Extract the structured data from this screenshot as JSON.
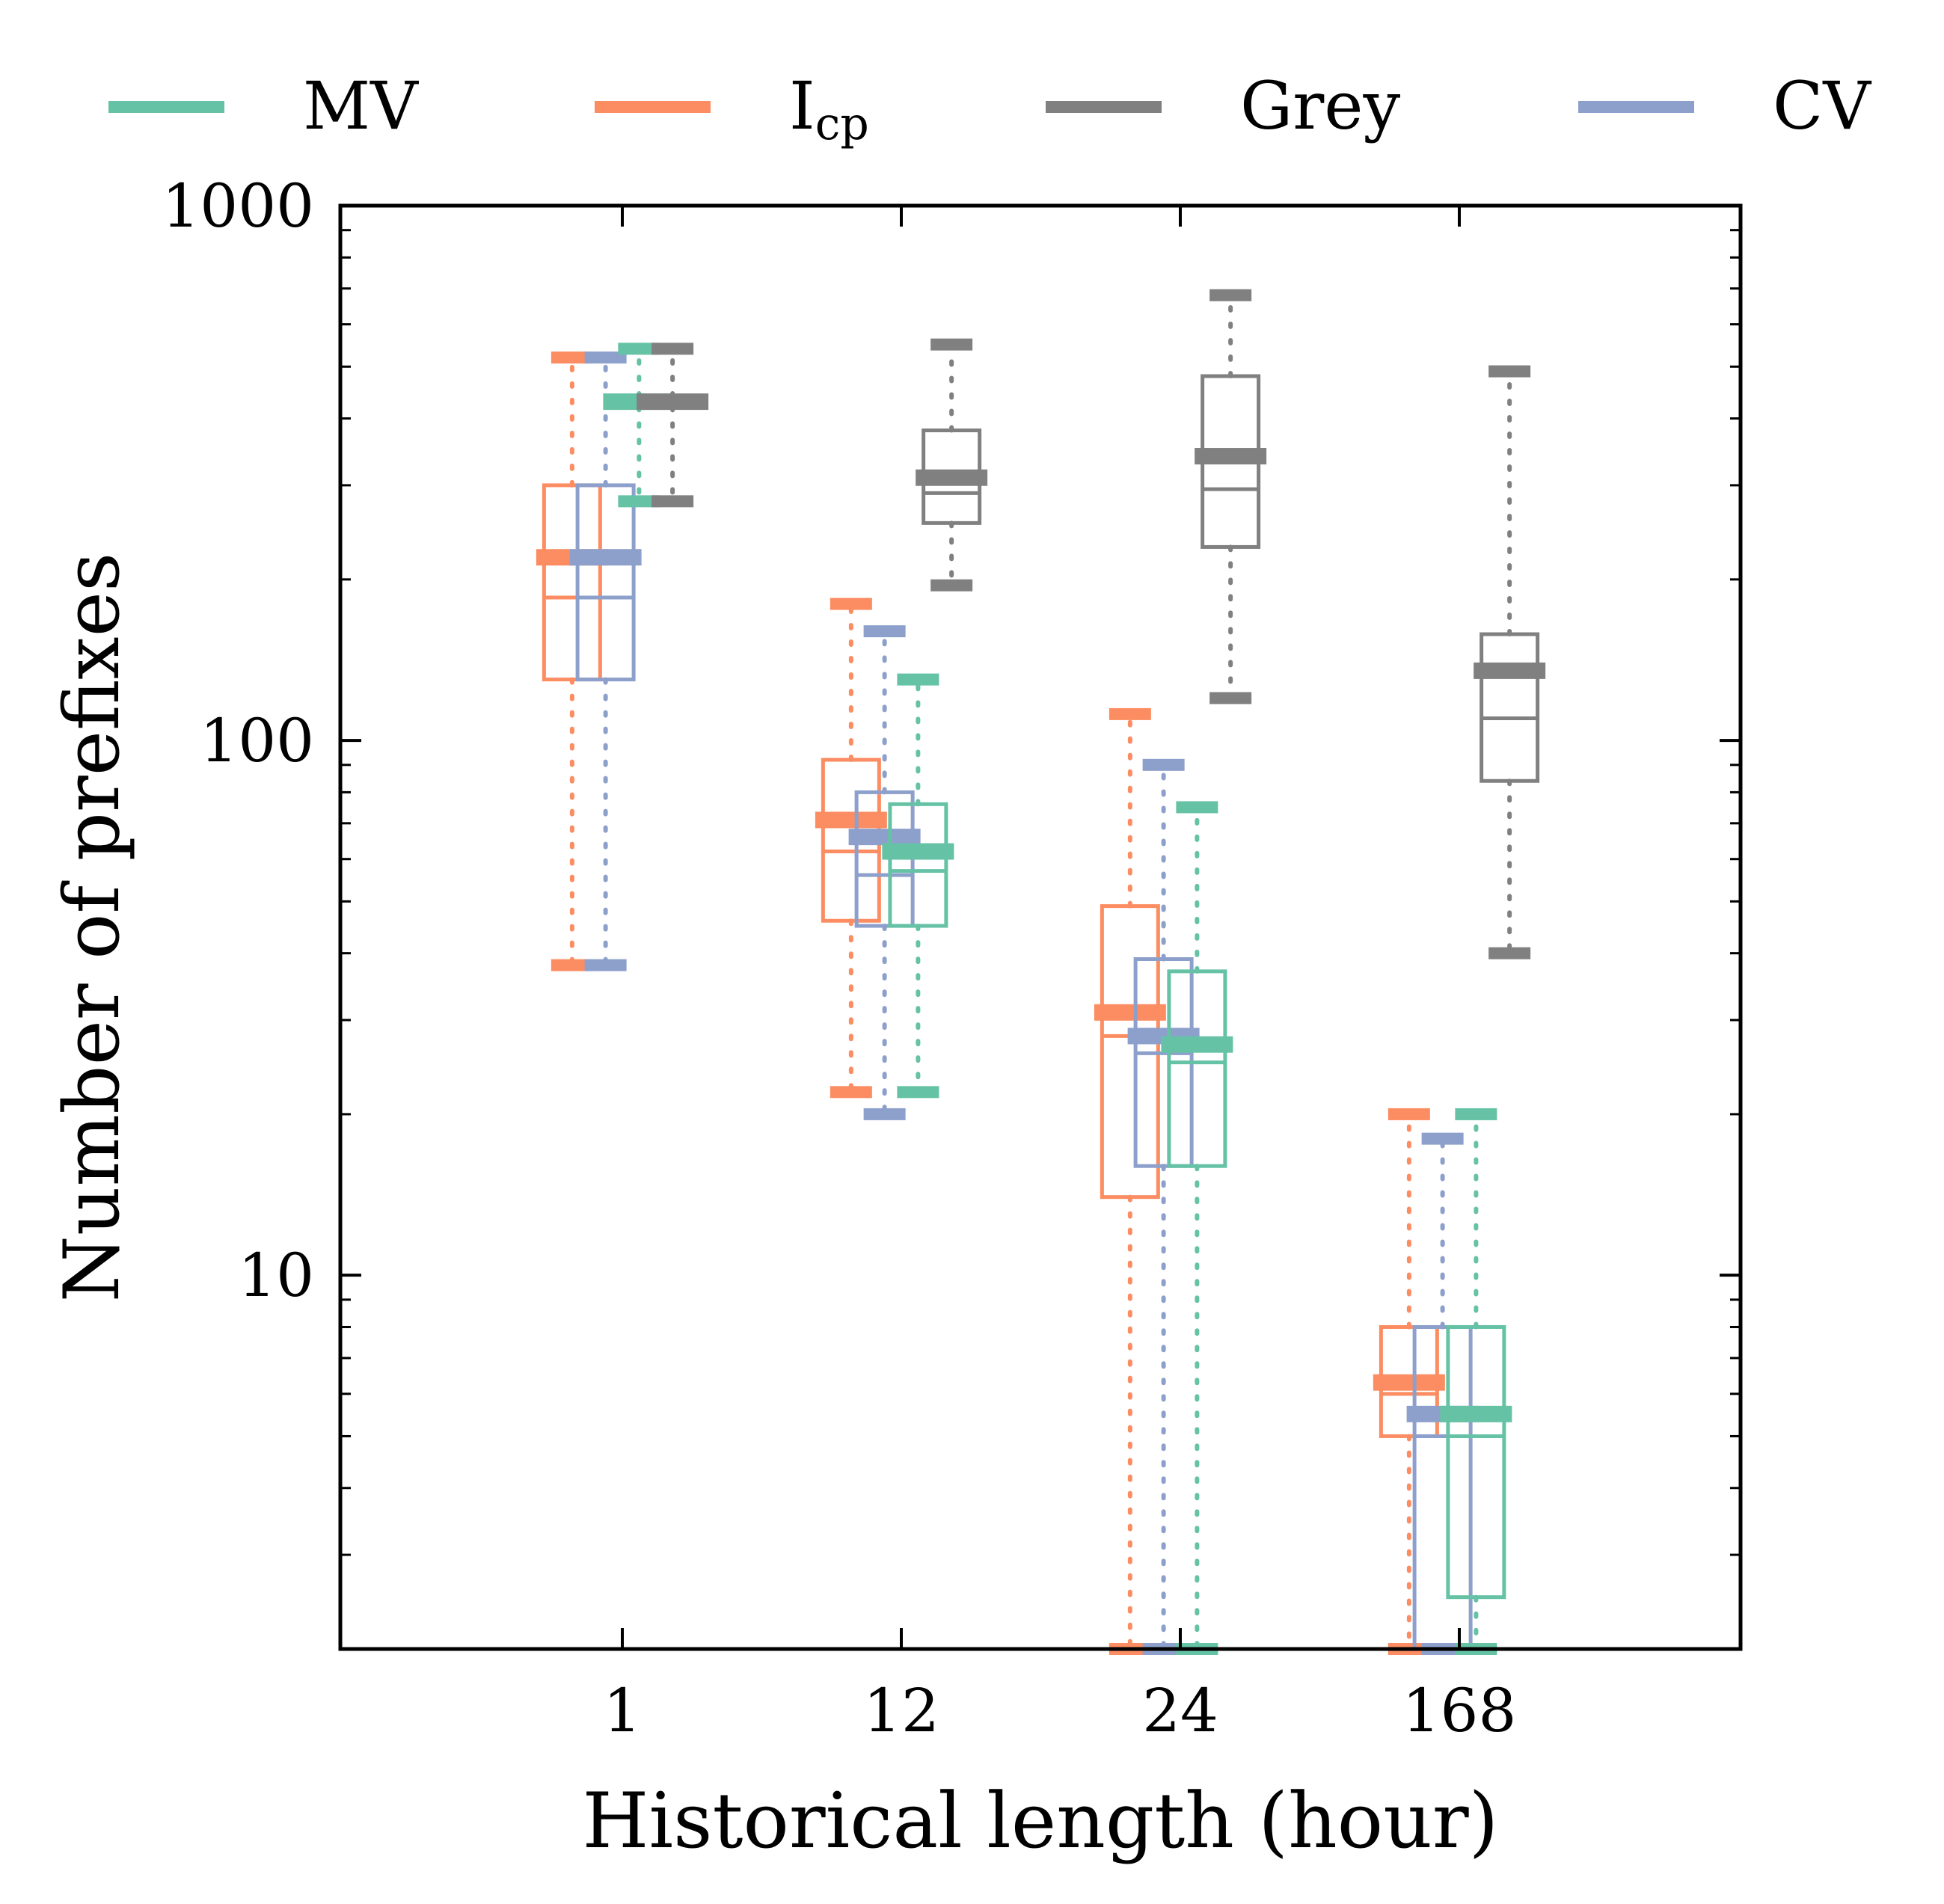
{
  "chart_data": {
    "type": "box",
    "xlabel": "Historical length (hour)",
    "ylabel": "Number of prefixes",
    "yscale": "log",
    "ylim": [
      2,
      1000
    ],
    "categories": [
      "1",
      "12",
      "24",
      "168"
    ],
    "y_ticks": [
      "10",
      "100",
      "1000"
    ],
    "grid": false,
    "legend": {
      "placement": "top",
      "entries": [
        {
          "label": "MV",
          "color": "#66c2a5"
        },
        {
          "label": "I",
          "sub": "cp",
          "color": "#fc8d62"
        },
        {
          "label": "Grey",
          "color": "#808080"
        },
        {
          "label": "CV",
          "color": "#8da0cb"
        }
      ]
    },
    "series": [
      {
        "key": "icp",
        "color": "#fc8d62",
        "boxes": [
          {
            "category": "1",
            "whislo": 38,
            "q1": 130,
            "median": 185,
            "mean": 220,
            "q3": 300,
            "whishi": 520
          },
          {
            "category": "12",
            "whislo": 22,
            "q1": 46,
            "median": 62,
            "mean": 71,
            "q3": 92,
            "whishi": 180
          },
          {
            "category": "24",
            "whislo": 2,
            "q1": 14,
            "median": 28,
            "mean": 31,
            "q3": 49,
            "whishi": 112
          },
          {
            "category": "168",
            "whislo": 2,
            "q1": 5,
            "median": 6,
            "mean": 6.3,
            "q3": 8,
            "whishi": 20
          }
        ]
      },
      {
        "key": "cv",
        "color": "#8da0cb",
        "boxes": [
          {
            "category": "1",
            "whislo": 38,
            "q1": 130,
            "median": 185,
            "mean": 220,
            "q3": 300,
            "whishi": 520
          },
          {
            "category": "12",
            "whislo": 20,
            "q1": 45,
            "median": 56,
            "mean": 66,
            "q3": 80,
            "whishi": 160
          },
          {
            "category": "24",
            "whislo": 2,
            "q1": 16,
            "median": 26,
            "mean": 28,
            "q3": 39,
            "whishi": 90
          },
          {
            "category": "168",
            "whislo": 2,
            "q1": 2,
            "median": 5,
            "mean": 5.5,
            "q3": 8,
            "whishi": 18
          }
        ]
      },
      {
        "key": "mv",
        "color": "#66c2a5",
        "boxes": [
          {
            "category": "1",
            "whislo": 280,
            "q1": 420,
            "median": 430,
            "mean": 430,
            "q3": 440,
            "whishi": 540
          },
          {
            "category": "12",
            "whislo": 22,
            "q1": 45,
            "median": 57,
            "mean": 62,
            "q3": 76,
            "whishi": 130
          },
          {
            "category": "24",
            "whislo": 2,
            "q1": 16,
            "median": 25,
            "mean": 27,
            "q3": 37,
            "whishi": 75
          },
          {
            "category": "168",
            "whislo": 2,
            "q1": 2.5,
            "median": 5,
            "mean": 5.5,
            "q3": 8,
            "whishi": 20
          }
        ]
      },
      {
        "key": "grey",
        "color": "#808080",
        "boxes": [
          {
            "category": "1",
            "whislo": 280,
            "q1": 420,
            "median": 430,
            "mean": 430,
            "q3": 440,
            "whishi": 540
          },
          {
            "category": "12",
            "whislo": 195,
            "q1": 255,
            "median": 290,
            "mean": 310,
            "q3": 380,
            "whishi": 550
          },
          {
            "category": "24",
            "whislo": 120,
            "q1": 230,
            "median": 295,
            "mean": 340,
            "q3": 480,
            "whishi": 680
          },
          {
            "category": "168",
            "whislo": 40,
            "q1": 84,
            "median": 110,
            "mean": 135,
            "q3": 158,
            "whishi": 490
          }
        ]
      }
    ]
  }
}
